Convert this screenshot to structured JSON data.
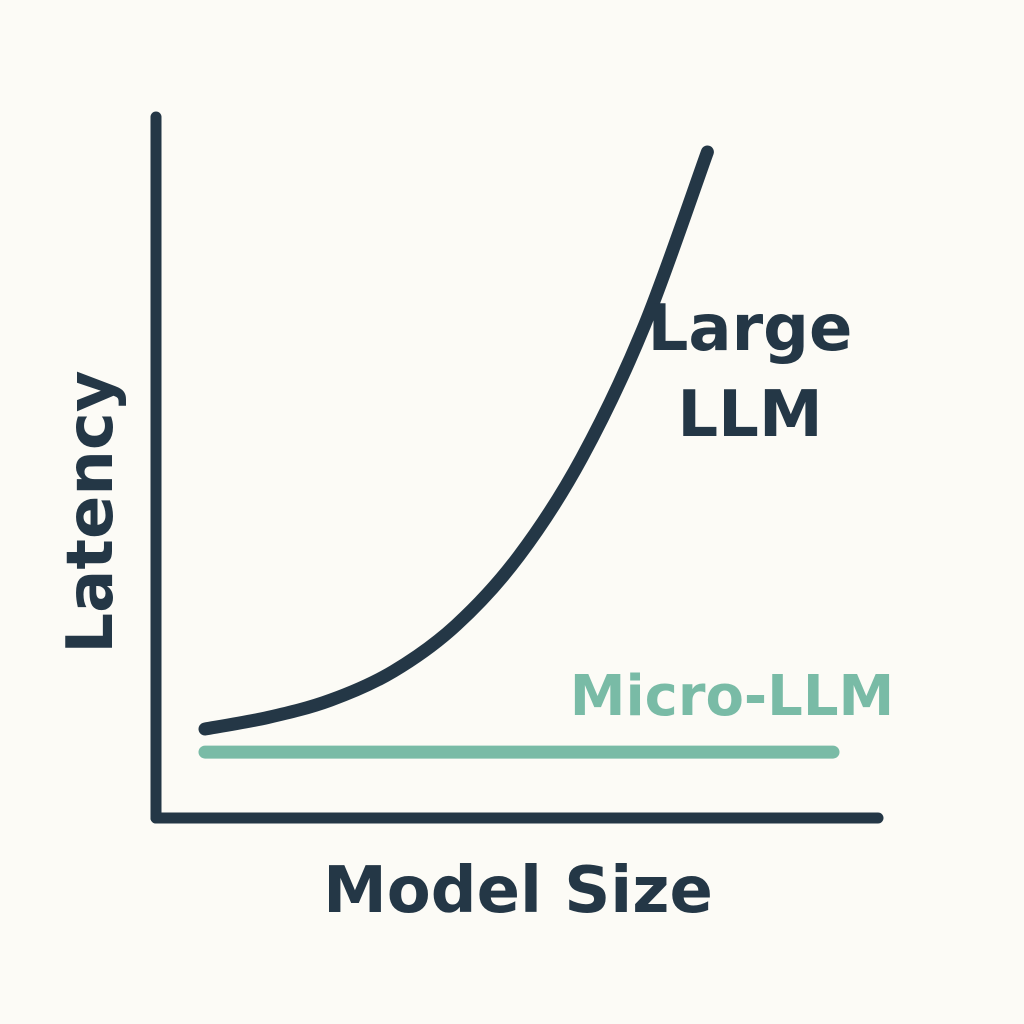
{
  "chart_data": {
    "type": "line",
    "xlabel": "Model Size",
    "ylabel": "Latency",
    "x_ticks": [],
    "y_ticks": [],
    "grid": false,
    "series": [
      {
        "name": "Large LLM",
        "label_lines": [
          "Large",
          "LLM"
        ],
        "color": "#243746",
        "shape": "exponential-growth",
        "points": [
          [
            0.0,
            0.0
          ],
          [
            0.1,
            0.02
          ],
          [
            0.2,
            0.05
          ],
          [
            0.3,
            0.1
          ],
          [
            0.4,
            0.18
          ],
          [
            0.5,
            0.3
          ],
          [
            0.6,
            0.47
          ],
          [
            0.7,
            0.7
          ],
          [
            0.8,
            1.0
          ]
        ]
      },
      {
        "name": "Micro-LLM",
        "label_lines": [
          "Micro-LLM"
        ],
        "color": "#79bba6",
        "shape": "flat",
        "points": [
          [
            0.0,
            -0.04
          ],
          [
            1.0,
            -0.04
          ]
        ]
      }
    ],
    "colors": {
      "axis": "#243746",
      "background": "#fcfbf6"
    }
  }
}
